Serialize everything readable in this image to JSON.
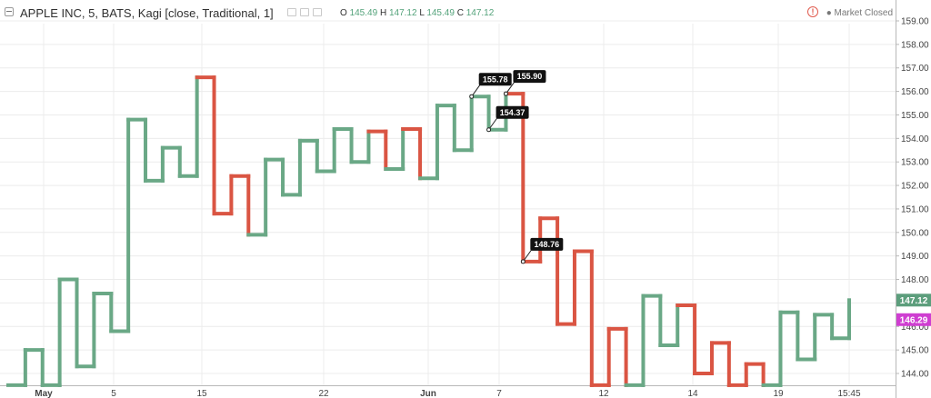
{
  "header": {
    "title": "APPLE INC, 5, BATS, Kagi [close, Traditional, 1]",
    "ohlc": [
      {
        "k": "O",
        "v": "145.49"
      },
      {
        "k": "H",
        "v": "147.12"
      },
      {
        "k": "L",
        "v": "145.49"
      },
      {
        "k": "C",
        "v": "147.12"
      }
    ],
    "market_status": "Market Closed",
    "market_status_icon": "alert-circle-icon"
  },
  "colors": {
    "up": "#6aa886",
    "down": "#da5543",
    "grid": "#ececec",
    "axis_text": "#444444",
    "last_price_bg": "#5c9e7c",
    "secondary_price_bg": "#cf3ed1"
  },
  "chart_data": {
    "type": "line",
    "subtype": "kagi",
    "ylim": [
      143.5,
      159.5
    ],
    "y_ticks": [
      "144.00",
      "145.00",
      "146.00",
      "147.00",
      "148.00",
      "149.00",
      "150.00",
      "151.00",
      "152.00",
      "153.00",
      "154.00",
      "155.00",
      "156.00",
      "157.00",
      "158.00",
      "159.00"
    ],
    "x_ticks": [
      "May",
      "5",
      "15",
      "22",
      "Jun",
      "7",
      "12",
      "14",
      "19",
      "15:45"
    ],
    "kagi_turns": [
      {
        "price": 143.5,
        "color": "up"
      },
      {
        "price": 145.0,
        "color": "up"
      },
      {
        "price": 143.5,
        "color": "up"
      },
      {
        "price": 148.0,
        "color": "up"
      },
      {
        "price": 144.3,
        "color": "up"
      },
      {
        "price": 147.4,
        "color": "up"
      },
      {
        "price": 145.8,
        "color": "up"
      },
      {
        "price": 154.8,
        "color": "up"
      },
      {
        "price": 152.2,
        "color": "up"
      },
      {
        "price": 153.6,
        "color": "up"
      },
      {
        "price": 152.4,
        "color": "up"
      },
      {
        "price": 156.6,
        "color": "up"
      },
      {
        "price": 150.8,
        "color": "down"
      },
      {
        "price": 152.4,
        "color": "down"
      },
      {
        "price": 149.9,
        "color": "down"
      },
      {
        "price": 153.1,
        "color": "up"
      },
      {
        "price": 151.6,
        "color": "up"
      },
      {
        "price": 153.9,
        "color": "up"
      },
      {
        "price": 152.6,
        "color": "up"
      },
      {
        "price": 154.4,
        "color": "up"
      },
      {
        "price": 153.0,
        "color": "up"
      },
      {
        "price": 154.3,
        "color": "up"
      },
      {
        "price": 152.7,
        "color": "down"
      },
      {
        "price": 154.4,
        "color": "up"
      },
      {
        "price": 152.3,
        "color": "down"
      },
      {
        "price": 155.4,
        "color": "up"
      },
      {
        "price": 153.5,
        "color": "up"
      },
      {
        "price": 155.78,
        "color": "up"
      },
      {
        "price": 154.37,
        "color": "up"
      },
      {
        "price": 155.9,
        "color": "up"
      },
      {
        "price": 148.76,
        "color": "down"
      },
      {
        "price": 150.6,
        "color": "down"
      },
      {
        "price": 146.1,
        "color": "down"
      },
      {
        "price": 149.2,
        "color": "down"
      },
      {
        "price": 143.5,
        "color": "down"
      },
      {
        "price": 145.9,
        "color": "down"
      },
      {
        "price": 143.5,
        "color": "down"
      },
      {
        "price": 147.3,
        "color": "up"
      },
      {
        "price": 145.2,
        "color": "up"
      },
      {
        "price": 146.9,
        "color": "up"
      },
      {
        "price": 144.0,
        "color": "down"
      },
      {
        "price": 145.3,
        "color": "down"
      },
      {
        "price": 143.5,
        "color": "down"
      },
      {
        "price": 144.4,
        "color": "down"
      },
      {
        "price": 143.5,
        "color": "down"
      },
      {
        "price": 146.6,
        "color": "up"
      },
      {
        "price": 144.6,
        "color": "up"
      },
      {
        "price": 146.5,
        "color": "up"
      },
      {
        "price": 145.5,
        "color": "up"
      },
      {
        "price": 147.12,
        "color": "up"
      }
    ],
    "annotations": [
      {
        "label": "155.78",
        "price": 155.78,
        "turn_index": 27
      },
      {
        "label": "155.90",
        "price": 155.9,
        "turn_index": 29
      },
      {
        "label": "154.37",
        "price": 154.37,
        "turn_index": 28
      },
      {
        "label": "148.76",
        "price": 148.76,
        "turn_index": 30
      }
    ],
    "price_markers": [
      {
        "label": "147.12",
        "price": 147.12,
        "kind": "last"
      },
      {
        "label": "146.29",
        "price": 146.29,
        "kind": "secondary"
      }
    ],
    "grid": true
  }
}
